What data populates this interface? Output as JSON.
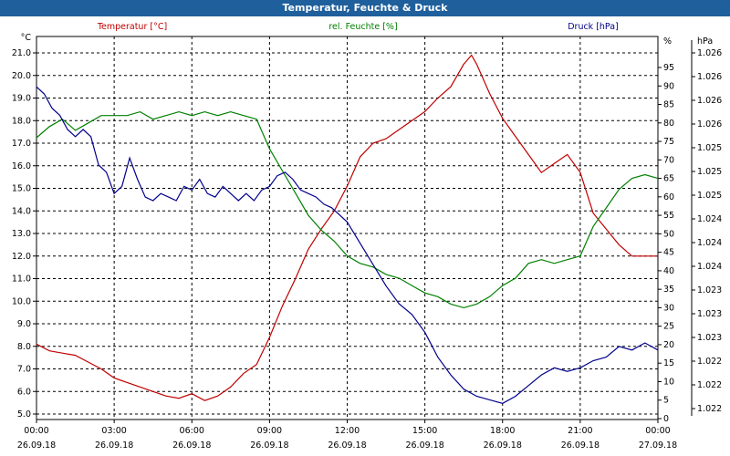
{
  "window_title": "Temperatur, Feuchte & Druck",
  "chart_data": {
    "type": "line",
    "title": "Temperatur, Feuchte & Druck",
    "grid": true,
    "x": {
      "range": [
        "00:00",
        "24:00"
      ],
      "ticks": [
        {
          "time": "00:00",
          "date": "26.09.18"
        },
        {
          "time": "03:00",
          "date": "26.09.18"
        },
        {
          "time": "06:00",
          "date": "26.09.18"
        },
        {
          "time": "09:00",
          "date": "26.09.18"
        },
        {
          "time": "12:00",
          "date": "26.09.18"
        },
        {
          "time": "15:00",
          "date": "26.09.18"
        },
        {
          "time": "18:00",
          "date": "26.09.18"
        },
        {
          "time": "21:00",
          "date": "26.09.18"
        },
        {
          "time": "00:00",
          "date": "27.09.18"
        }
      ]
    },
    "axes": {
      "temperature": {
        "label": "Temperatur [°C]",
        "unit": "°C",
        "color": "#c00000",
        "ylim": [
          5.0,
          21.0
        ],
        "ticks": [
          "5.0",
          "6.0",
          "7.0",
          "8.0",
          "9.0",
          "10.0",
          "11.0",
          "12.0",
          "13.0",
          "14.0",
          "15.0",
          "16.0",
          "17.0",
          "18.0",
          "19.0",
          "20.0",
          "21.0"
        ]
      },
      "humidity": {
        "label": "rel. Feuchte [%]",
        "unit": "%",
        "color": "#008000",
        "ylim": [
          0,
          95
        ],
        "ticks": [
          "0",
          "5",
          "10",
          "15",
          "20",
          "25",
          "30",
          "35",
          "40",
          "45",
          "50",
          "55",
          "60",
          "65",
          "70",
          "75",
          "80",
          "85",
          "90",
          "95"
        ]
      },
      "pressure": {
        "label": "Druck [hPa]",
        "unit": "hPa",
        "color": "#00008b",
        "ticks": [
          "1.022",
          "1.022",
          "1.022",
          "1.023",
          "1.023",
          "1.023",
          "1.024",
          "1.024",
          "1.024",
          "1.025",
          "1.025",
          "1.025",
          "1.026",
          "1.026",
          "1.026",
          "1.026"
        ]
      }
    },
    "series": [
      {
        "name": "Temperatur [°C]",
        "axis": "temperature",
        "color": "#c00000",
        "points": [
          [
            0,
            8.1
          ],
          [
            0.5,
            7.8
          ],
          [
            1.0,
            7.7
          ],
          [
            1.5,
            7.6
          ],
          [
            2.0,
            7.3
          ],
          [
            2.5,
            7.0
          ],
          [
            3.0,
            6.6
          ],
          [
            3.5,
            6.4
          ],
          [
            4.0,
            6.2
          ],
          [
            4.5,
            6.0
          ],
          [
            5.0,
            5.8
          ],
          [
            5.5,
            5.7
          ],
          [
            6.0,
            5.9
          ],
          [
            6.5,
            5.6
          ],
          [
            7.0,
            5.8
          ],
          [
            7.5,
            6.2
          ],
          [
            8.0,
            6.8
          ],
          [
            8.5,
            7.2
          ],
          [
            9.0,
            8.4
          ],
          [
            9.5,
            9.8
          ],
          [
            10.0,
            11.0
          ],
          [
            10.5,
            12.3
          ],
          [
            11.0,
            13.2
          ],
          [
            11.5,
            14.0
          ],
          [
            12.0,
            15.1
          ],
          [
            12.5,
            16.4
          ],
          [
            13.0,
            17.0
          ],
          [
            13.5,
            17.2
          ],
          [
            14.0,
            17.6
          ],
          [
            14.5,
            18.0
          ],
          [
            15.0,
            18.4
          ],
          [
            15.5,
            19.0
          ],
          [
            16.0,
            19.5
          ],
          [
            16.5,
            20.5
          ],
          [
            16.8,
            20.9
          ],
          [
            17.0,
            20.5
          ],
          [
            17.5,
            19.2
          ],
          [
            18.0,
            18.1
          ],
          [
            18.5,
            17.3
          ],
          [
            19.0,
            16.5
          ],
          [
            19.5,
            15.7
          ],
          [
            20.0,
            16.1
          ],
          [
            20.5,
            16.5
          ],
          [
            21.0,
            15.7
          ],
          [
            21.5,
            13.9
          ],
          [
            22.0,
            13.2
          ],
          [
            22.5,
            12.5
          ],
          [
            23.0,
            12.0
          ],
          [
            23.5,
            12.0
          ],
          [
            24.0,
            12.0
          ]
        ]
      },
      {
        "name": "rel. Feuchte [%]",
        "axis": "humidity",
        "color": "#008000",
        "points": [
          [
            0,
            76
          ],
          [
            0.5,
            79
          ],
          [
            1.0,
            81
          ],
          [
            1.5,
            78
          ],
          [
            2.0,
            80
          ],
          [
            2.5,
            82
          ],
          [
            3.0,
            82
          ],
          [
            3.5,
            82
          ],
          [
            4.0,
            83
          ],
          [
            4.5,
            81
          ],
          [
            5.0,
            82
          ],
          [
            5.5,
            83
          ],
          [
            6.0,
            82
          ],
          [
            6.5,
            83
          ],
          [
            7.0,
            82
          ],
          [
            7.5,
            83
          ],
          [
            8.0,
            82
          ],
          [
            8.5,
            81
          ],
          [
            9.0,
            73
          ],
          [
            9.5,
            67
          ],
          [
            10.0,
            61
          ],
          [
            10.5,
            55
          ],
          [
            11.0,
            51
          ],
          [
            11.5,
            48
          ],
          [
            12.0,
            44
          ],
          [
            12.5,
            42
          ],
          [
            13.0,
            41
          ],
          [
            13.5,
            39
          ],
          [
            14.0,
            38
          ],
          [
            14.5,
            36
          ],
          [
            15.0,
            34
          ],
          [
            15.5,
            33
          ],
          [
            16.0,
            31
          ],
          [
            16.5,
            30
          ],
          [
            17.0,
            31
          ],
          [
            17.5,
            33
          ],
          [
            18.0,
            36
          ],
          [
            18.5,
            38
          ],
          [
            19.0,
            42
          ],
          [
            19.5,
            43
          ],
          [
            20.0,
            42
          ],
          [
            20.5,
            43
          ],
          [
            21.0,
            44
          ],
          [
            21.5,
            52
          ],
          [
            22.0,
            57
          ],
          [
            22.5,
            62
          ],
          [
            23.0,
            65
          ],
          [
            23.5,
            66
          ],
          [
            24.0,
            65
          ]
        ]
      },
      {
        "name": "Druck [hPa]",
        "axis": "pressure",
        "color": "#00008b",
        "points": [
          [
            0,
            92
          ],
          [
            0.3,
            90
          ],
          [
            0.6,
            86
          ],
          [
            0.9,
            84
          ],
          [
            1.2,
            80
          ],
          [
            1.5,
            78
          ],
          [
            1.8,
            80
          ],
          [
            2.1,
            78
          ],
          [
            2.4,
            70
          ],
          [
            2.7,
            68
          ],
          [
            3.0,
            62
          ],
          [
            3.3,
            64
          ],
          [
            3.6,
            72
          ],
          [
            3.9,
            66
          ],
          [
            4.2,
            61
          ],
          [
            4.5,
            60
          ],
          [
            4.8,
            62
          ],
          [
            5.1,
            61
          ],
          [
            5.4,
            60
          ],
          [
            5.7,
            64
          ],
          [
            6.0,
            63
          ],
          [
            6.3,
            66
          ],
          [
            6.6,
            62
          ],
          [
            6.9,
            61
          ],
          [
            7.2,
            64
          ],
          [
            7.5,
            62
          ],
          [
            7.8,
            60
          ],
          [
            8.1,
            62
          ],
          [
            8.4,
            60
          ],
          [
            8.7,
            63
          ],
          [
            9.0,
            64
          ],
          [
            9.3,
            67
          ],
          [
            9.6,
            68
          ],
          [
            9.9,
            66
          ],
          [
            10.2,
            63
          ],
          [
            10.5,
            62
          ],
          [
            10.8,
            61
          ],
          [
            11.1,
            59
          ],
          [
            11.4,
            58
          ],
          [
            11.7,
            56
          ],
          [
            12.0,
            54
          ],
          [
            12.5,
            48
          ],
          [
            13.0,
            42
          ],
          [
            13.5,
            36
          ],
          [
            14.0,
            31
          ],
          [
            14.5,
            28
          ],
          [
            15.0,
            23
          ],
          [
            15.5,
            16
          ],
          [
            16.0,
            11
          ],
          [
            16.5,
            7
          ],
          [
            17.0,
            5
          ],
          [
            17.5,
            4
          ],
          [
            18.0,
            3
          ],
          [
            18.5,
            5
          ],
          [
            19.0,
            8
          ],
          [
            19.5,
            11
          ],
          [
            20.0,
            13
          ],
          [
            20.5,
            12
          ],
          [
            21.0,
            13
          ],
          [
            21.5,
            15
          ],
          [
            22.0,
            16
          ],
          [
            22.5,
            19
          ],
          [
            23.0,
            18
          ],
          [
            23.5,
            20
          ],
          [
            24.0,
            18
          ]
        ]
      }
    ]
  }
}
